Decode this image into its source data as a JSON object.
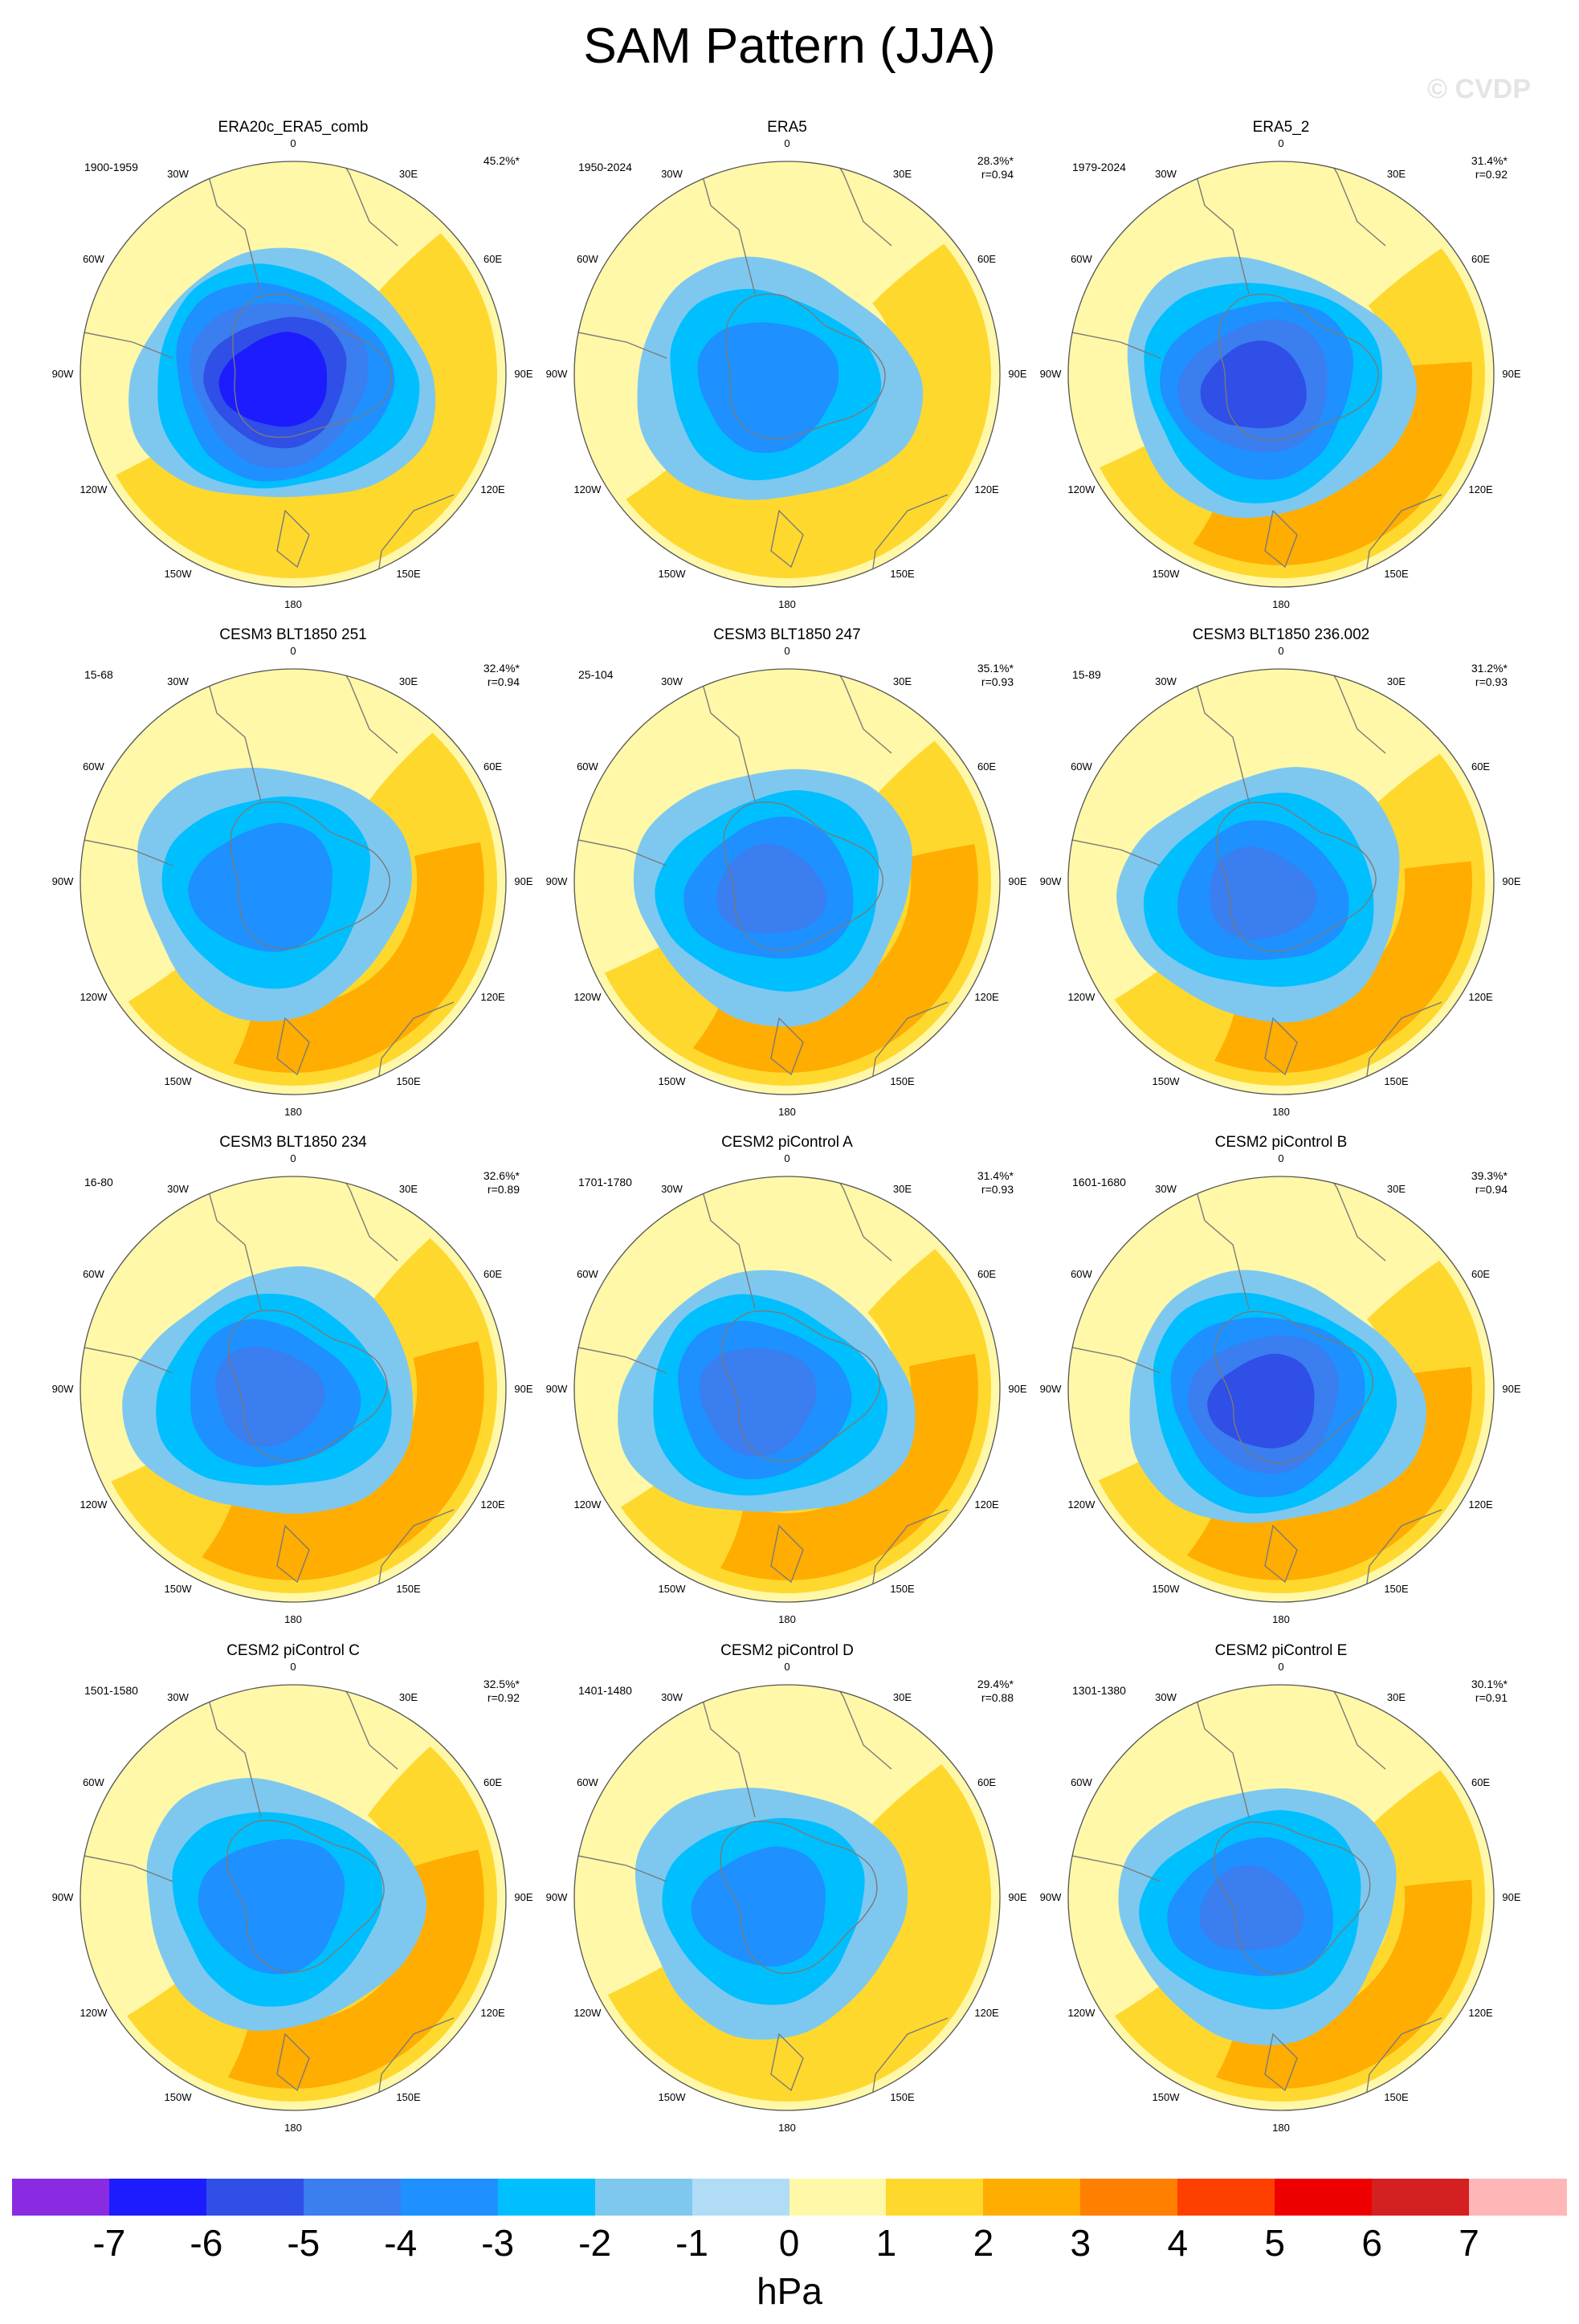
{
  "title": "SAM Pattern (JJA)",
  "watermark": "© CVDP",
  "unit": "hPa",
  "lon_labels": [
    "0",
    "30E",
    "60E",
    "90E",
    "120E",
    "150E",
    "180",
    "150W",
    "120W",
    "90W",
    "60W",
    "30W"
  ],
  "colorbar": {
    "ticks": [
      "-7",
      "-6",
      "-5",
      "-4",
      "-3",
      "-2",
      "-1",
      "0",
      "1",
      "2",
      "3",
      "4",
      "5",
      "6",
      "7"
    ],
    "colors": [
      "#8a2be2",
      "#1c1cff",
      "#2f4fe6",
      "#3a7ef0",
      "#1e90ff",
      "#00bfff",
      "#7ec8f0",
      "#b0ddf5",
      "#fff8a8",
      "#ffd82e",
      "#ffad00",
      "#ff7f00",
      "#ff3f00",
      "#ee0000",
      "#d42020",
      "#ffb6b6"
    ]
  },
  "panels": [
    {
      "title": "ERA20c_ERA5_comb",
      "period": "1900-1959",
      "pct": "45.2%*",
      "r": "",
      "min": -6.5,
      "max": 1.6
    },
    {
      "title": "ERA5",
      "period": "1950-2024",
      "pct": "28.3%*",
      "r": "r=0.94",
      "min": -3.6,
      "max": 1.7
    },
    {
      "title": "ERA5_2",
      "period": "1979-2024",
      "pct": "31.4%*",
      "r": "r=0.92",
      "min": -5.2,
      "max": 2.4
    },
    {
      "title": "CESM3 BLT1850 251",
      "period": "15-68",
      "pct": "32.4%*",
      "r": "r=0.94",
      "min": -3.6,
      "max": 2.3
    },
    {
      "title": "CESM3 BLT1850 247",
      "period": "25-104",
      "pct": "35.1%*",
      "r": "r=0.93",
      "min": -4.1,
      "max": 2.8
    },
    {
      "title": "CESM3 BLT1850 236.002",
      "period": "15-89",
      "pct": "31.2%*",
      "r": "r=0.93",
      "min": -4.1,
      "max": 2.7
    },
    {
      "title": "CESM3 BLT1850 234",
      "period": "16-80",
      "pct": "32.6%*",
      "r": "r=0.89",
      "min": -4.2,
      "max": 2.6
    },
    {
      "title": "CESM2 piControl A",
      "period": "1701-1780",
      "pct": "31.4%*",
      "r": "r=0.93",
      "min": -4.4,
      "max": 2.7
    },
    {
      "title": "CESM2 piControl B",
      "period": "1601-1680",
      "pct": "39.3%*",
      "r": "r=0.94",
      "min": -5.3,
      "max": 2.8
    },
    {
      "title": "CESM2 piControl C",
      "period": "1501-1580",
      "pct": "32.5%*",
      "r": "r=0.92",
      "min": -3.7,
      "max": 2.6
    },
    {
      "title": "CESM2 piControl D",
      "period": "1401-1480",
      "pct": "29.4%*",
      "r": "r=0.88",
      "min": -3.4,
      "max": 1.9
    },
    {
      "title": "CESM2 piControl E",
      "period": "1301-1380",
      "pct": "30.1%*",
      "r": "r=0.91",
      "min": -4.0,
      "max": 2.6
    }
  ]
}
